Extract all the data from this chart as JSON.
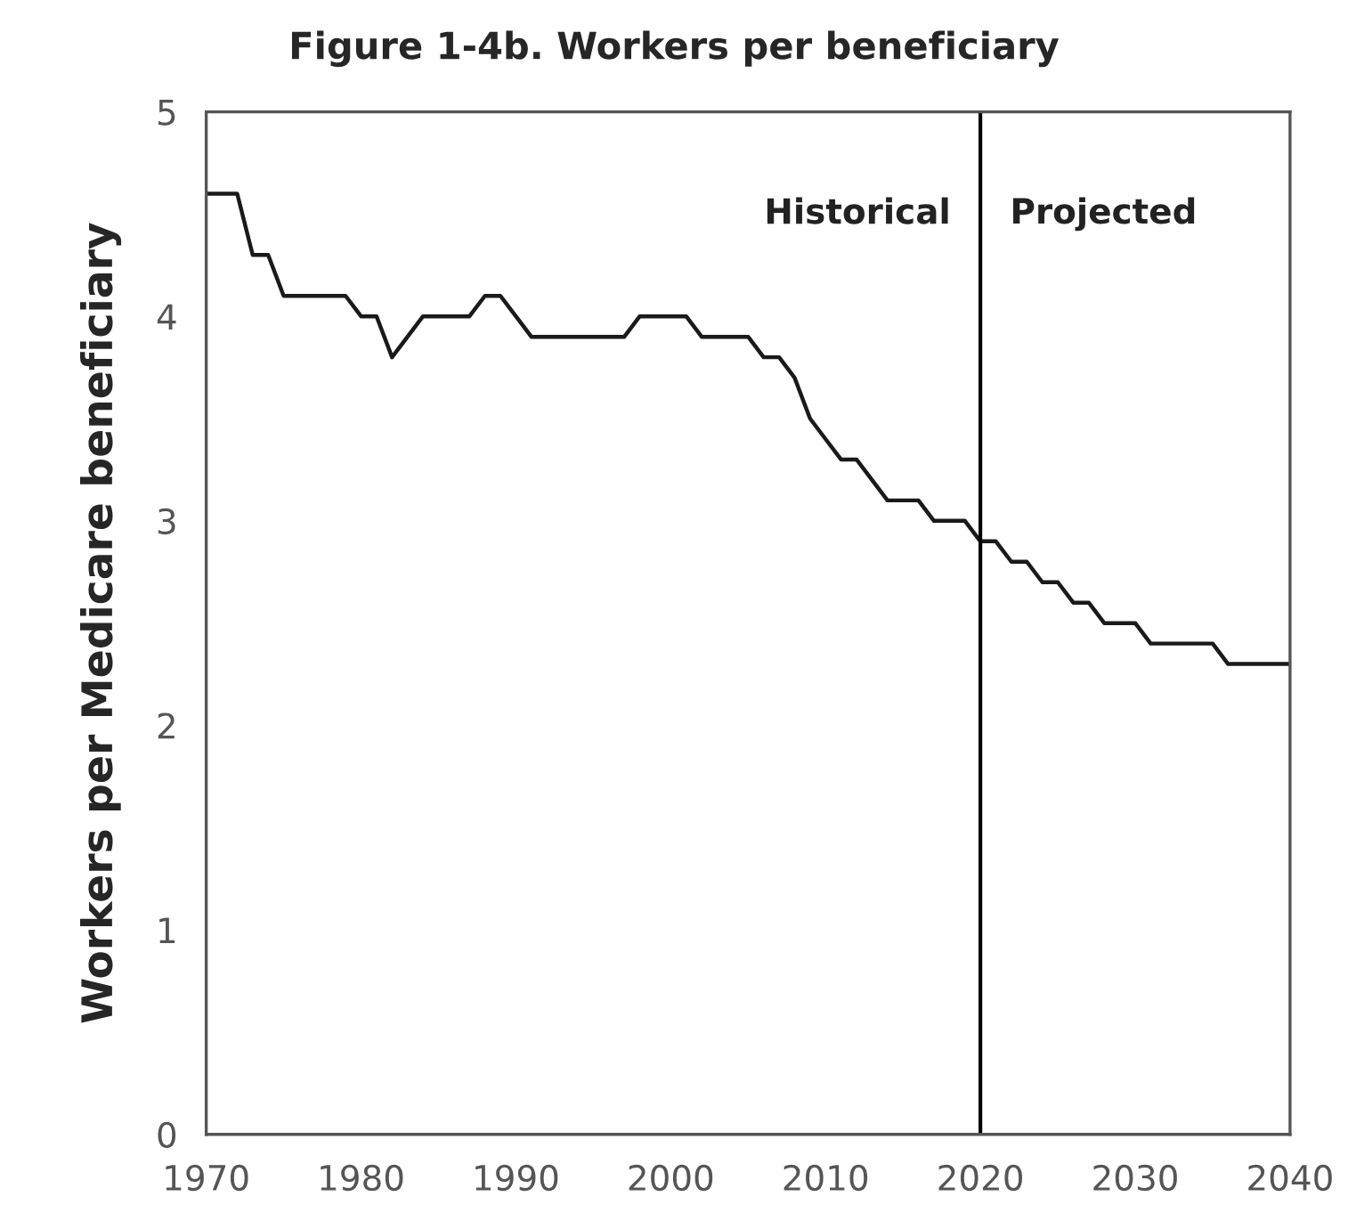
{
  "chart_data": {
    "type": "line",
    "title": "Figure 1-4b. Workers per beneficiary",
    "ylabel": "Workers per Medicare beneficiary",
    "x": [
      1970,
      1971,
      1972,
      1973,
      1974,
      1975,
      1976,
      1977,
      1978,
      1979,
      1980,
      1981,
      1982,
      1983,
      1984,
      1985,
      1986,
      1987,
      1988,
      1989,
      1990,
      1991,
      1992,
      1993,
      1994,
      1995,
      1996,
      1997,
      1998,
      1999,
      2000,
      2001,
      2002,
      2003,
      2004,
      2005,
      2006,
      2007,
      2008,
      2009,
      2010,
      2011,
      2012,
      2013,
      2014,
      2015,
      2016,
      2017,
      2018,
      2019,
      2020,
      2021,
      2022,
      2023,
      2024,
      2025,
      2026,
      2027,
      2028,
      2029,
      2030,
      2031,
      2032,
      2033,
      2034,
      2035,
      2036,
      2037,
      2038,
      2039,
      2040
    ],
    "series": [
      {
        "color": "#1a1a1a",
        "values": [
          4.6,
          4.6,
          4.6,
          4.3,
          4.3,
          4.1,
          4.1,
          4.1,
          4.1,
          4.1,
          4.0,
          4.0,
          3.8,
          3.9,
          4.0,
          4.0,
          4.0,
          4.0,
          4.1,
          4.1,
          4.0,
          3.9,
          3.9,
          3.9,
          3.9,
          3.9,
          3.9,
          3.9,
          4.0,
          4.0,
          4.0,
          4.0,
          3.9,
          3.9,
          3.9,
          3.9,
          3.8,
          3.8,
          3.7,
          3.5,
          3.4,
          3.3,
          3.3,
          3.2,
          3.1,
          3.1,
          3.1,
          3.0,
          3.0,
          3.0,
          2.9,
          2.9,
          2.8,
          2.8,
          2.7,
          2.7,
          2.6,
          2.6,
          2.5,
          2.5,
          2.5,
          2.4,
          2.4,
          2.4,
          2.4,
          2.4,
          2.3,
          2.3,
          2.3,
          2.3,
          2.3
        ]
      }
    ],
    "xlim": [
      1970,
      2040
    ],
    "xticks": [
      1970,
      1980,
      1990,
      2000,
      2010,
      2020,
      2030,
      2040
    ],
    "ylim": [
      0,
      5
    ],
    "yticks": [
      0,
      1,
      2,
      3,
      4,
      5
    ],
    "ref_lines": [
      {
        "axis": "x",
        "value": 2020,
        "color": "#000000"
      }
    ],
    "annotations": [
      "Historical",
      "Projected"
    ],
    "grid": false,
    "legend": false,
    "marker": "none",
    "line_style": "solid"
  }
}
